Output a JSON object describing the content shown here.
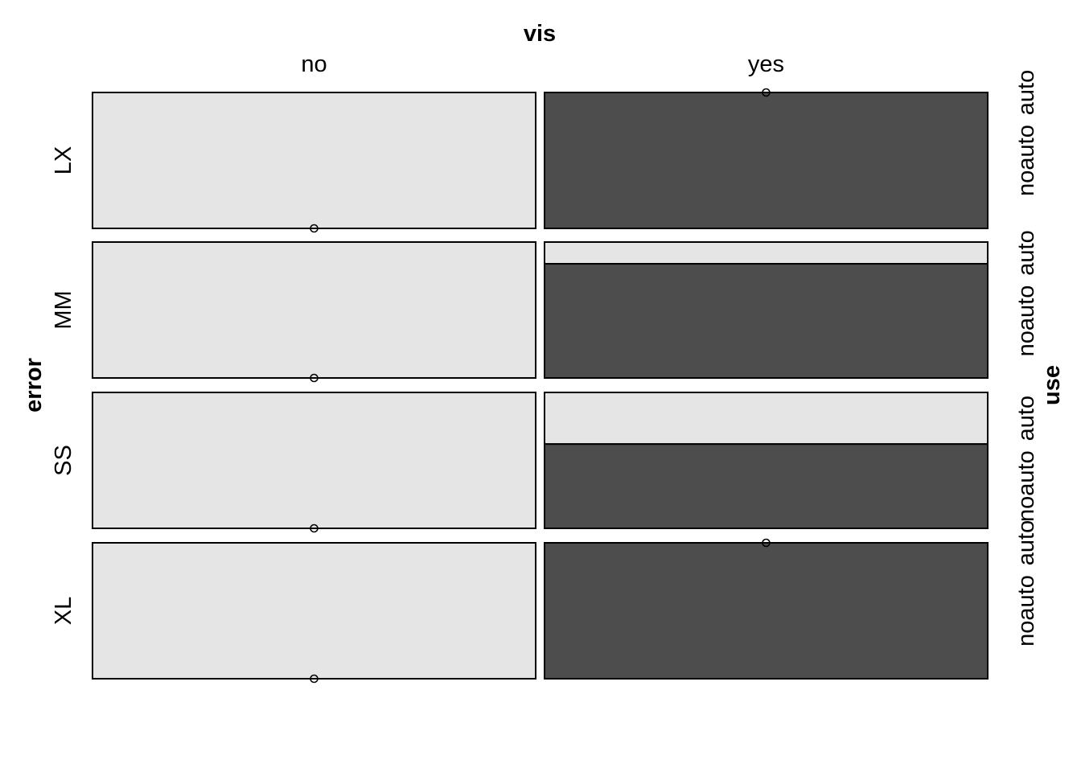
{
  "chart_data": {
    "type": "mosaic",
    "column_variable": "vis",
    "row_variable": "error",
    "fill_variable": "use",
    "columns": [
      "no",
      "yes"
    ],
    "rows": [
      "LX",
      "MM",
      "SS",
      "XL"
    ],
    "fill_levels": [
      "auto",
      "noauto"
    ],
    "fill_colors": {
      "auto": "#e5e5e5",
      "noauto": "#4d4d4d"
    },
    "cells": [
      {
        "row": "LX",
        "column": "no",
        "auto_fraction": 1.0,
        "noauto_fraction": 0.0
      },
      {
        "row": "LX",
        "column": "yes",
        "auto_fraction": 0.0,
        "noauto_fraction": 1.0
      },
      {
        "row": "MM",
        "column": "no",
        "auto_fraction": 1.0,
        "noauto_fraction": 0.0
      },
      {
        "row": "MM",
        "column": "yes",
        "auto_fraction": 0.16,
        "noauto_fraction": 0.84
      },
      {
        "row": "SS",
        "column": "no",
        "auto_fraction": 1.0,
        "noauto_fraction": 0.0
      },
      {
        "row": "SS",
        "column": "yes",
        "auto_fraction": 0.38,
        "noauto_fraction": 0.62
      },
      {
        "row": "XL",
        "column": "no",
        "auto_fraction": 1.0,
        "noauto_fraction": 0.0
      },
      {
        "row": "XL",
        "column": "yes",
        "auto_fraction": 0.0,
        "noauto_fraction": 1.0
      }
    ]
  }
}
